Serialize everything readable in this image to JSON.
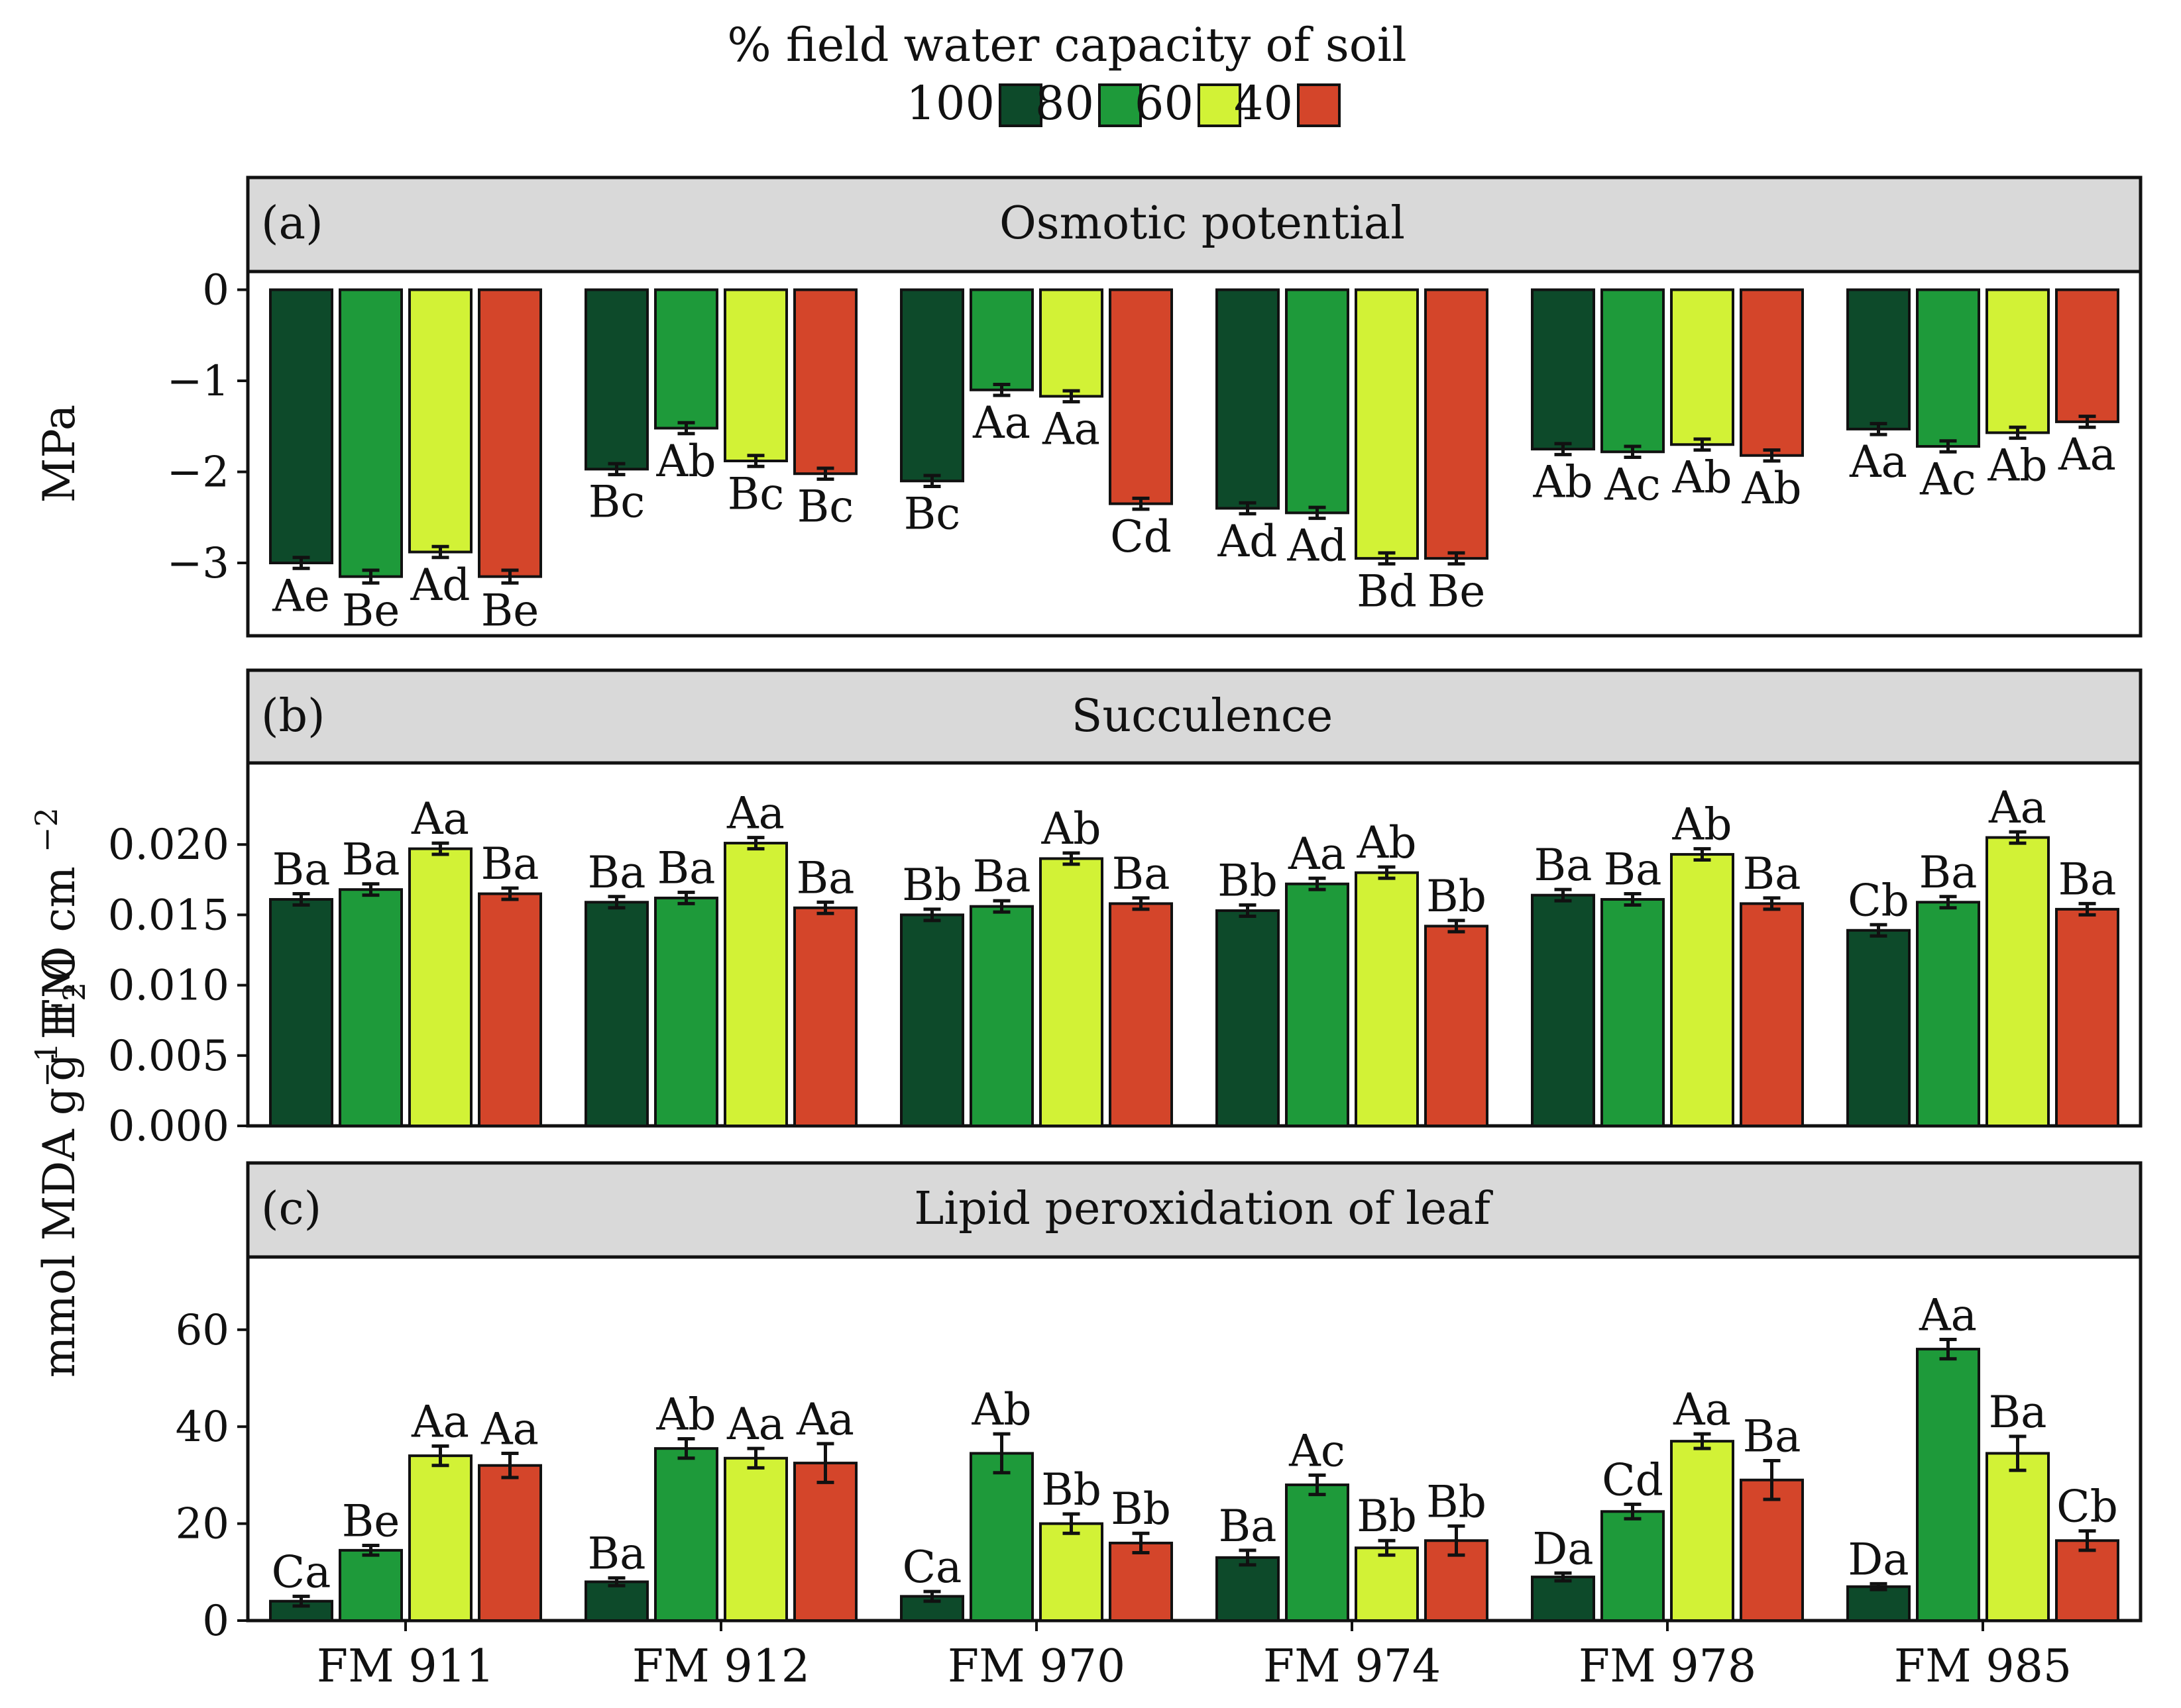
{
  "legend": {
    "title": "% field water capacity of soil",
    "levels": [
      "100",
      "80",
      "60",
      "40"
    ],
    "colors": [
      "#0d4a2a",
      "#1e9a3a",
      "#d2f236",
      "#d4452a"
    ]
  },
  "x_categories": [
    "FM 911",
    "FM 912",
    "FM 970",
    "FM 974",
    "FM 978",
    "FM 985"
  ],
  "chart_data": [
    {
      "type": "bar",
      "panel": "(a)",
      "title": "Osmotic potential",
      "ylabel": "MPa",
      "ylim": [
        -3.8,
        0.2
      ],
      "yticks": [
        0,
        -1,
        -2,
        -3
      ],
      "ytick_labels": [
        "0",
        "−1",
        "−2",
        "−3"
      ],
      "categories": [
        "FM 911",
        "FM 912",
        "FM 970",
        "FM 974",
        "FM 978",
        "FM 985"
      ],
      "series": [
        {
          "name": "100",
          "values": [
            -3.0,
            -1.97,
            -2.1,
            -2.4,
            -1.75,
            -1.53
          ],
          "errors": [
            0.06,
            0.06,
            0.06,
            0.06,
            0.06,
            0.06
          ],
          "letters": [
            "Ae",
            "Bc",
            "Bc",
            "Ad",
            "Ab",
            "Aa"
          ]
        },
        {
          "name": "80",
          "values": [
            -3.15,
            -1.52,
            -1.1,
            -2.45,
            -1.78,
            -1.72
          ],
          "errors": [
            0.07,
            0.06,
            0.06,
            0.06,
            0.06,
            0.06
          ],
          "letters": [
            "Be",
            "Ab",
            "Aa",
            "Ad",
            "Ac",
            "Ac"
          ]
        },
        {
          "name": "60",
          "values": [
            -2.88,
            -1.88,
            -1.17,
            -2.95,
            -1.7,
            -1.57
          ],
          "errors": [
            0.06,
            0.06,
            0.06,
            0.06,
            0.06,
            0.06
          ],
          "letters": [
            "Ad",
            "Bc",
            "Aa",
            "Bd",
            "Ab",
            "Ab"
          ]
        },
        {
          "name": "40",
          "values": [
            -3.15,
            -2.02,
            -2.35,
            -2.95,
            -1.82,
            -1.45
          ],
          "errors": [
            0.07,
            0.06,
            0.06,
            0.06,
            0.06,
            0.06
          ],
          "letters": [
            "Be",
            "Bc",
            "Cd",
            "Be",
            "Ab",
            "Aa"
          ]
        }
      ]
    },
    {
      "type": "bar",
      "panel": "(b)",
      "title": "Succulence",
      "ylabel": "g H2O cm -2",
      "ylabel_parts": [
        "g H",
        "2",
        "O cm ",
        "−2"
      ],
      "ylim": [
        0,
        0.0258
      ],
      "yticks": [
        0.0,
        0.005,
        0.01,
        0.015,
        0.02
      ],
      "ytick_labels": [
        "0.000",
        "0.005",
        "0.010",
        "0.015",
        "0.020"
      ],
      "categories": [
        "FM 911",
        "FM 912",
        "FM 970",
        "FM 974",
        "FM 978",
        "FM 985"
      ],
      "series": [
        {
          "name": "100",
          "values": [
            0.0161,
            0.0159,
            0.015,
            0.0153,
            0.0164,
            0.0139
          ],
          "errors": [
            0.0004,
            0.0004,
            0.0004,
            0.0004,
            0.0004,
            0.0004
          ],
          "letters": [
            "Ba",
            "Ba",
            "Bb",
            "Bb",
            "Ba",
            "Cb"
          ]
        },
        {
          "name": "80",
          "values": [
            0.0168,
            0.0162,
            0.0156,
            0.0172,
            0.0161,
            0.0159
          ],
          "errors": [
            0.0004,
            0.0004,
            0.0004,
            0.0004,
            0.0004,
            0.0004
          ],
          "letters": [
            "Ba",
            "Ba",
            "Ba",
            "Aa",
            "Ba",
            "Ba"
          ]
        },
        {
          "name": "60",
          "values": [
            0.0197,
            0.0201,
            0.019,
            0.018,
            0.0193,
            0.0205
          ],
          "errors": [
            0.0004,
            0.0004,
            0.0004,
            0.0004,
            0.0004,
            0.0004
          ],
          "letters": [
            "Aa",
            "Aa",
            "Ab",
            "Ab",
            "Ab",
            "Aa"
          ]
        },
        {
          "name": "40",
          "values": [
            0.0165,
            0.0155,
            0.0158,
            0.0142,
            0.0158,
            0.0154
          ],
          "errors": [
            0.0004,
            0.0004,
            0.0004,
            0.0004,
            0.0004,
            0.0004
          ],
          "letters": [
            "Ba",
            "Ba",
            "Ba",
            "Bb",
            "Ba",
            "Ba"
          ]
        }
      ]
    },
    {
      "type": "bar",
      "panel": "(c)",
      "title": "Lipid peroxidation of leaf",
      "ylabel": "mmol MDA g-1 FM",
      "ylabel_parts": [
        "mmol MDA g",
        "−1",
        " FM"
      ],
      "ylim": [
        0,
        75
      ],
      "yticks": [
        0,
        20,
        40,
        60
      ],
      "ytick_labels": [
        "0",
        "20",
        "40",
        "60"
      ],
      "categories": [
        "FM 911",
        "FM 912",
        "FM 970",
        "FM 974",
        "FM 978",
        "FM 985"
      ],
      "series": [
        {
          "name": "100",
          "values": [
            4,
            8,
            5,
            13,
            9,
            7
          ],
          "errors": [
            1,
            0.8,
            1,
            1.5,
            0.8,
            0.6
          ],
          "letters": [
            "Ca",
            "Ba",
            "Ca",
            "Ba",
            "Da",
            "Da"
          ]
        },
        {
          "name": "80",
          "values": [
            14.5,
            35.5,
            34.5,
            28,
            22.5,
            56
          ],
          "errors": [
            1,
            2,
            4,
            2,
            1.5,
            2
          ],
          "letters": [
            "Be",
            "Ab",
            "Ab",
            "Ac",
            "Cd",
            "Aa"
          ]
        },
        {
          "name": "60",
          "values": [
            34,
            33.5,
            20,
            15,
            37,
            34.5
          ],
          "errors": [
            2,
            2,
            2,
            1.5,
            1.5,
            3.5
          ],
          "letters": [
            "Aa",
            "Aa",
            "Bb",
            "Bb",
            "Aa",
            "Ba"
          ]
        },
        {
          "name": "40",
          "values": [
            32,
            32.5,
            16,
            16.5,
            29,
            16.5
          ],
          "errors": [
            2.5,
            4,
            2,
            3,
            4,
            2
          ],
          "letters": [
            "Aa",
            "Aa",
            "Bb",
            "Bb",
            "Ba",
            "Cb"
          ]
        }
      ]
    }
  ]
}
